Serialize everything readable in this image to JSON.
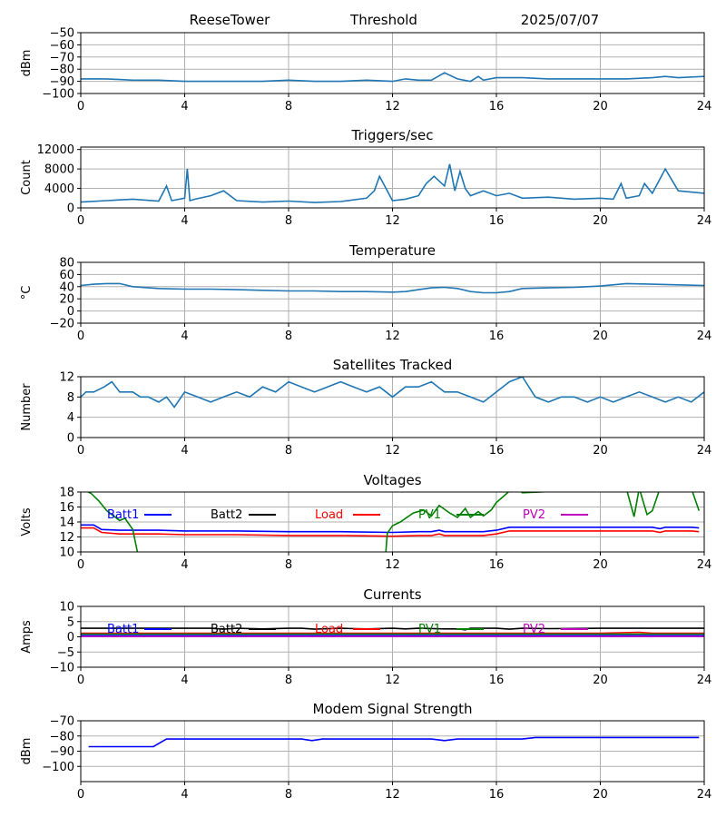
{
  "header": {
    "site": "ReeseTower",
    "mode": "Threshold",
    "date": "2025/07/07"
  },
  "colors": {
    "series_default": "#1f77b4",
    "grid": "#b0b0b0",
    "batt1": "#0000ff",
    "batt2": "#000000",
    "load": "#ff0000",
    "pv1": "#008000",
    "pv2": "#bf00bf"
  },
  "chart_data": [
    {
      "type": "line",
      "title": "",
      "ylabel": "dBm",
      "xlim": [
        0,
        24
      ],
      "ylim": [
        -100,
        -50
      ],
      "grid": true,
      "xticks": [
        0,
        4,
        8,
        12,
        16,
        20,
        24
      ],
      "yticks": [
        -100,
        -90,
        -80,
        -70,
        -60,
        -50
      ],
      "series": [
        {
          "color": "#1f77b4",
          "x": [
            0,
            1,
            2,
            3,
            4,
            5,
            6,
            7,
            8,
            9,
            10,
            11,
            12,
            12.5,
            13,
            13.5,
            14,
            14.5,
            15,
            15.3,
            15.5,
            16,
            17,
            18,
            19,
            20,
            21,
            22,
            22.5,
            23,
            24
          ],
          "y": [
            -88,
            -88,
            -89,
            -89,
            -90,
            -90,
            -90,
            -90,
            -89,
            -90,
            -90,
            -89,
            -90,
            -88,
            -89,
            -89,
            -83,
            -88,
            -90,
            -86,
            -89,
            -87,
            -87,
            -88,
            -88,
            -88,
            -88,
            -87,
            -86,
            -87,
            -86
          ]
        }
      ]
    },
    {
      "type": "line",
      "title": "Triggers/sec",
      "ylabel": "Count",
      "xlim": [
        0,
        24
      ],
      "ylim": [
        0,
        12500
      ],
      "grid": true,
      "xticks": [
        0,
        4,
        8,
        12,
        16,
        20,
        24
      ],
      "yticks": [
        0,
        4000,
        8000,
        12000
      ],
      "series": [
        {
          "color": "#1f77b4",
          "x": [
            0,
            1,
            2,
            3,
            3.3,
            3.5,
            4,
            4.1,
            4.2,
            4.4,
            5,
            5.5,
            6,
            7,
            8,
            9,
            10,
            11,
            11.3,
            11.5,
            12,
            12.5,
            13,
            13.3,
            13.6,
            14,
            14.2,
            14.4,
            14.6,
            14.8,
            15,
            15.5,
            16,
            16.5,
            17,
            18,
            19,
            20,
            20.5,
            20.8,
            21,
            21.5,
            21.7,
            22,
            22.5,
            23,
            24
          ],
          "y": [
            1200,
            1500,
            1800,
            1400,
            4500,
            1500,
            2000,
            8000,
            1500,
            1800,
            2500,
            3500,
            1500,
            1200,
            1400,
            1100,
            1300,
            2000,
            3500,
            6500,
            1500,
            1800,
            2500,
            5000,
            6500,
            4500,
            9000,
            3500,
            7500,
            4000,
            2500,
            3500,
            2500,
            3000,
            2000,
            2200,
            1800,
            2000,
            1800,
            5000,
            2000,
            2500,
            5000,
            3000,
            8000,
            3500,
            3000
          ]
        }
      ]
    },
    {
      "type": "line",
      "title": "Temperature",
      "ylabel": "°C",
      "xlim": [
        0,
        24
      ],
      "ylim": [
        -20,
        80
      ],
      "grid": true,
      "xticks": [
        0,
        4,
        8,
        12,
        16,
        20,
        24
      ],
      "yticks": [
        -20,
        0,
        20,
        40,
        60,
        80
      ],
      "series": [
        {
          "color": "#1f77b4",
          "x": [
            0,
            0.5,
            1,
            1.5,
            2,
            3,
            4,
            5,
            6,
            7,
            8,
            9,
            10,
            11,
            12,
            12.5,
            13,
            13.5,
            14,
            14.5,
            15,
            15.5,
            16,
            16.5,
            17,
            18,
            19,
            20,
            21,
            22,
            23,
            24
          ],
          "y": [
            42,
            44,
            45,
            45,
            40,
            37,
            36,
            36,
            35,
            34,
            33,
            33,
            32,
            32,
            31,
            32,
            35,
            38,
            39,
            37,
            32,
            30,
            30,
            32,
            37,
            38,
            39,
            41,
            45,
            44,
            43,
            42
          ]
        }
      ]
    },
    {
      "type": "line",
      "title": "Satellites Tracked",
      "ylabel": "Number",
      "xlim": [
        0,
        24
      ],
      "ylim": [
        0,
        12
      ],
      "grid": true,
      "xticks": [
        0,
        4,
        8,
        12,
        16,
        20,
        24
      ],
      "yticks": [
        0,
        4,
        8,
        12
      ],
      "series": [
        {
          "color": "#1f77b4",
          "x": [
            0,
            0.2,
            0.5,
            0.9,
            1.2,
            1.5,
            2,
            2.3,
            2.6,
            3,
            3.3,
            3.6,
            4,
            4.5,
            5,
            5.5,
            6,
            6.5,
            7,
            7.5,
            8,
            8.5,
            9,
            9.5,
            10,
            10.5,
            11,
            11.5,
            12,
            12.5,
            13,
            13.5,
            14,
            14.5,
            15,
            15.5,
            16,
            16.5,
            17,
            17.5,
            18,
            18.5,
            19,
            19.5,
            20,
            20.5,
            21,
            21.5,
            22,
            22.5,
            23,
            23.5,
            24
          ],
          "y": [
            8,
            9,
            9,
            10,
            11,
            9,
            9,
            8,
            8,
            7,
            8,
            6,
            9,
            8,
            7,
            8,
            9,
            8,
            10,
            9,
            11,
            10,
            9,
            10,
            11,
            10,
            9,
            10,
            8,
            10,
            10,
            11,
            9,
            9,
            8,
            7,
            9,
            11,
            12,
            8,
            7,
            8,
            8,
            7,
            8,
            7,
            8,
            9,
            8,
            7,
            8,
            7,
            9
          ]
        }
      ]
    },
    {
      "type": "line",
      "title": "Voltages",
      "ylabel": "Volts",
      "xlim": [
        0,
        24
      ],
      "ylim": [
        10,
        18
      ],
      "grid": true,
      "xticks": [
        0,
        4,
        8,
        12,
        16,
        20,
        24
      ],
      "yticks": [
        10,
        12,
        14,
        16,
        18
      ],
      "legend": [
        "Batt1",
        "Batt2",
        "Load",
        "PV1",
        "PV2"
      ],
      "series": [
        {
          "name": "Batt1",
          "color": "#0000ff",
          "x": [
            0,
            0.5,
            0.8,
            1.5,
            2,
            3,
            4,
            6,
            8,
            10,
            12,
            13,
            13.5,
            13.8,
            14,
            15,
            15.5,
            16,
            16.5,
            17,
            18,
            20,
            21,
            22,
            22.3,
            22.5,
            23,
            23.5,
            23.8
          ],
          "y": [
            13.6,
            13.6,
            13.0,
            12.9,
            12.9,
            12.9,
            12.8,
            12.8,
            12.7,
            12.7,
            12.6,
            12.7,
            12.7,
            12.9,
            12.7,
            12.7,
            12.7,
            12.9,
            13.3,
            13.3,
            13.3,
            13.3,
            13.3,
            13.3,
            13.1,
            13.3,
            13.3,
            13.3,
            13.2
          ]
        },
        {
          "name": "Load",
          "color": "#ff0000",
          "x": [
            0,
            0.5,
            0.8,
            1.5,
            2,
            3,
            4,
            6,
            8,
            10,
            12,
            13,
            13.5,
            13.8,
            14,
            15,
            15.5,
            16,
            16.5,
            17,
            18,
            20,
            21,
            22,
            22.3,
            22.5,
            23,
            23.5,
            23.8
          ],
          "y": [
            13.2,
            13.2,
            12.6,
            12.4,
            12.4,
            12.4,
            12.3,
            12.3,
            12.2,
            12.2,
            12.1,
            12.2,
            12.2,
            12.4,
            12.2,
            12.2,
            12.2,
            12.4,
            12.8,
            12.8,
            12.8,
            12.8,
            12.8,
            12.8,
            12.6,
            12.8,
            12.8,
            12.8,
            12.7
          ]
        },
        {
          "name": "PV1",
          "color": "#008000",
          "x": [
            0,
            0.4,
            0.7,
            1,
            1.5,
            1.7,
            2,
            2.3,
            11.7,
            11.8,
            12,
            12.3,
            12.8,
            13.2,
            13.5,
            13.8,
            14.2,
            14.5,
            14.8,
            15,
            15.3,
            15.5,
            15.8,
            16,
            16.4,
            16.6,
            16.8,
            17,
            21,
            21.3,
            21.5,
            21.8,
            22,
            22.3,
            23.5,
            23.8
          ],
          "y": [
            18.5,
            17.8,
            16.8,
            15.5,
            14.2,
            14.5,
            13,
            8,
            8,
            12.5,
            13.5,
            14,
            15.2,
            15.6,
            14.8,
            16.2,
            15.2,
            14.6,
            15.8,
            14.6,
            15.4,
            14.8,
            15.6,
            16.6,
            17.8,
            18.5,
            18.5,
            17.9,
            18.5,
            14.7,
            18.5,
            15,
            15.5,
            18.5,
            18.5,
            15.5
          ]
        }
      ]
    },
    {
      "type": "line",
      "title": "Currents",
      "ylabel": "Amps",
      "xlim": [
        0,
        24
      ],
      "ylim": [
        -10,
        10
      ],
      "grid": true,
      "xticks": [
        0,
        4,
        8,
        12,
        16,
        20,
        24
      ],
      "yticks": [
        -10,
        -5,
        0,
        5,
        10
      ],
      "legend": [
        "Batt1",
        "Batt2",
        "Load",
        "PV1",
        "PV2"
      ],
      "series": [
        {
          "name": "Batt2",
          "color": "#000000",
          "x": [
            0,
            2,
            4,
            5,
            5.5,
            6,
            7,
            8,
            8.5,
            9,
            10,
            11,
            12,
            12.5,
            13,
            14,
            14.5,
            14.8,
            15,
            16,
            16.5,
            17,
            18,
            20,
            22,
            24
          ],
          "y": [
            2.8,
            2.8,
            2.8,
            2.8,
            2.5,
            2.8,
            2.6,
            2.8,
            2.8,
            2.5,
            2.8,
            2.6,
            2.8,
            2.6,
            2.8,
            2.6,
            2.6,
            2.3,
            2.8,
            2.8,
            2.5,
            2.8,
            2.7,
            2.8,
            2.8,
            2.8
          ]
        },
        {
          "name": "Load",
          "color": "#ff0000",
          "x": [
            0,
            4,
            8,
            12,
            16,
            20,
            21.5,
            22,
            24
          ],
          "y": [
            1.2,
            1.2,
            1.2,
            1.2,
            1.2,
            1.2,
            1.5,
            1.2,
            1.2
          ]
        },
        {
          "name": "PV1",
          "color": "#008000",
          "x": [
            0,
            24
          ],
          "y": [
            0.9,
            0.9
          ]
        },
        {
          "name": "Batt1",
          "color": "#0000ff",
          "x": [
            0,
            24
          ],
          "y": [
            0.4,
            0.4
          ]
        },
        {
          "name": "PV2",
          "color": "#bf00bf",
          "x": [
            0,
            24
          ],
          "y": [
            0.1,
            0.1
          ]
        }
      ]
    },
    {
      "type": "line",
      "title": "Modem Signal Strength",
      "ylabel": "dBm",
      "xlim": [
        0,
        24
      ],
      "ylim": [
        -110,
        -70
      ],
      "grid": true,
      "xticks": [
        0,
        4,
        8,
        12,
        16,
        20,
        24
      ],
      "yticks": [
        -100,
        -90,
        -80,
        -70
      ],
      "series": [
        {
          "color": "#0000ff",
          "x": [
            0.3,
            2.8,
            3.3,
            8.5,
            8.9,
            9.3,
            13.5,
            14,
            14.5,
            17,
            17.5,
            23.8
          ],
          "y": [
            -87,
            -87,
            -82,
            -82,
            -83,
            -82,
            -82,
            -83,
            -82,
            -82,
            -81,
            -81
          ]
        }
      ]
    }
  ]
}
